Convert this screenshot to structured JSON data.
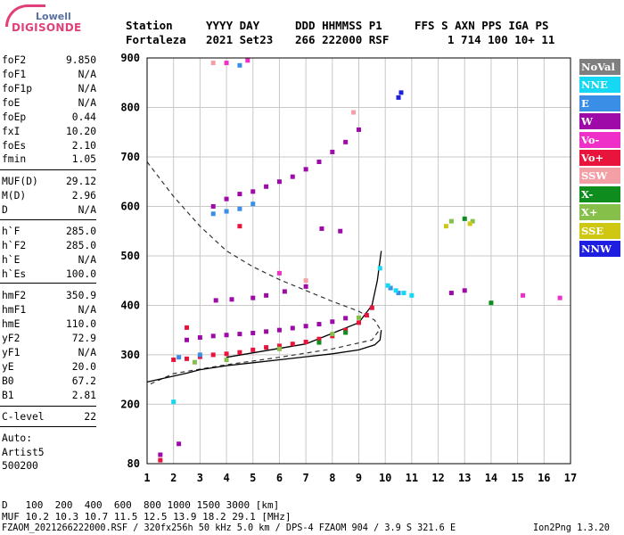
{
  "logo": {
    "top": "Lowell",
    "bottom": "DIGISONDE"
  },
  "header": {
    "line1": [
      "Station",
      "YYYY DAY",
      "DDD HHMMSS P1",
      "FFS S AXN PPS IGA PS"
    ],
    "line2": [
      "Fortaleza",
      "2021 Set23",
      "266 222000 RSF",
      "1 714 100 10+ 11"
    ]
  },
  "params": [
    {
      "name": "foF2",
      "value": "9.850"
    },
    {
      "name": "foF1",
      "value": "N/A"
    },
    {
      "name": "foF1p",
      "value": "N/A"
    },
    {
      "name": "foE",
      "value": "N/A"
    },
    {
      "name": "foEp",
      "value": "0.44"
    },
    {
      "name": "fxI",
      "value": "10.20"
    },
    {
      "name": "foEs",
      "value": "2.10"
    },
    {
      "name": "fmin",
      "value": "1.05"
    },
    {
      "name": "MUF(D)",
      "value": "29.12"
    },
    {
      "name": "M(D)",
      "value": "2.96"
    },
    {
      "name": "D",
      "value": "N/A"
    },
    {
      "name": "h`F",
      "value": "285.0"
    },
    {
      "name": "h`F2",
      "value": "285.0"
    },
    {
      "name": "h`E",
      "value": "N/A"
    },
    {
      "name": "h`Es",
      "value": "100.0"
    },
    {
      "name": "hmF2",
      "value": "350.9"
    },
    {
      "name": "hmF1",
      "value": "N/A"
    },
    {
      "name": "hmE",
      "value": "110.0"
    },
    {
      "name": "yF2",
      "value": "72.9"
    },
    {
      "name": "yF1",
      "value": "N/A"
    },
    {
      "name": "yE",
      "value": "20.0"
    },
    {
      "name": "B0",
      "value": "67.2"
    },
    {
      "name": "B1",
      "value": "2.81"
    },
    {
      "name": "C-level",
      "value": "22"
    }
  ],
  "autoscaling": {
    "line1": "Auto:",
    "line2": "Artist5",
    "line3": "500200"
  },
  "legend": [
    {
      "label": "NoVal",
      "color": "#7f7f7f"
    },
    {
      "label": "NNE",
      "color": "#16d8f2"
    },
    {
      "label": "E",
      "color": "#3a8ee6"
    },
    {
      "label": "W",
      "color": "#9e0aa8"
    },
    {
      "label": "Vo-",
      "color": "#ee30c8"
    },
    {
      "label": "Vo+",
      "color": "#e8143c"
    },
    {
      "label": "SSW",
      "color": "#f2a0a6"
    },
    {
      "label": "X-",
      "color": "#0f8c1e"
    },
    {
      "label": "X+",
      "color": "#86bf4a"
    },
    {
      "label": "SSE",
      "color": "#cfc812"
    },
    {
      "label": "NNW",
      "color": "#1e1ee0"
    }
  ],
  "footer": {
    "d_label": "D",
    "d_values": "100  200  400  600  800 1000 1500 3000 [km]",
    "muf_label": "MUF",
    "muf_values": "10.2 10.3 10.7 11.5 12.5 13.9 18.2 29.1 [MHz]",
    "file_line": "FZAOM_2021266222000.RSF / 320fx256h 50 kHz 5.0 km / DPS-4 FZAOM 904 / 3.9 S 321.6 E",
    "version": "Ion2Png 1.3.20"
  },
  "chart_data": {
    "type": "scatter",
    "xlabel": "",
    "ylabel": "",
    "xlim": [
      1,
      17
    ],
    "ylim": [
      80,
      900
    ],
    "x_ticks": [
      1,
      2,
      3,
      4,
      5,
      6,
      7,
      8,
      9,
      10,
      11,
      12,
      13,
      14,
      15,
      16,
      17
    ],
    "y_ticks": [
      80,
      200,
      300,
      400,
      500,
      600,
      700,
      800,
      900
    ],
    "grid": true,
    "series": [
      {
        "name": "W",
        "color": "#9e0aa8",
        "points": [
          [
            2.5,
            330
          ],
          [
            3.0,
            335
          ],
          [
            3.5,
            338
          ],
          [
            4.0,
            340
          ],
          [
            4.5,
            342
          ],
          [
            5.0,
            344
          ],
          [
            5.5,
            347
          ],
          [
            6.0,
            350
          ],
          [
            6.5,
            354
          ],
          [
            7.0,
            358
          ],
          [
            7.5,
            362
          ],
          [
            8.0,
            367
          ],
          [
            8.5,
            374
          ],
          [
            3.6,
            410
          ],
          [
            4.2,
            412
          ],
          [
            5.0,
            415
          ],
          [
            5.5,
            420
          ],
          [
            6.2,
            428
          ],
          [
            7.0,
            438
          ],
          [
            3.5,
            600
          ],
          [
            4.0,
            615
          ],
          [
            4.5,
            625
          ],
          [
            5.0,
            630
          ],
          [
            5.5,
            640
          ],
          [
            6.0,
            650
          ],
          [
            6.5,
            660
          ],
          [
            7.0,
            675
          ],
          [
            7.5,
            690
          ],
          [
            8.0,
            710
          ],
          [
            8.5,
            730
          ],
          [
            9.0,
            755
          ],
          [
            1.5,
            98
          ],
          [
            2.2,
            120
          ],
          [
            7.6,
            555
          ],
          [
            8.3,
            550
          ],
          [
            13.0,
            430
          ],
          [
            12.5,
            425
          ]
        ]
      },
      {
        "name": "Vo+",
        "color": "#e8143c",
        "points": [
          [
            1.5,
            87
          ],
          [
            2.0,
            290
          ],
          [
            2.5,
            292
          ],
          [
            3.0,
            296
          ],
          [
            3.5,
            300
          ],
          [
            4.0,
            302
          ],
          [
            4.5,
            305
          ],
          [
            5.0,
            310
          ],
          [
            5.5,
            315
          ],
          [
            6.0,
            318
          ],
          [
            6.5,
            322
          ],
          [
            7.0,
            326
          ],
          [
            7.5,
            332
          ],
          [
            8.0,
            338
          ],
          [
            8.5,
            350
          ],
          [
            9.0,
            365
          ],
          [
            9.3,
            380
          ],
          [
            9.5,
            395
          ],
          [
            2.5,
            355
          ],
          [
            4.5,
            560
          ]
        ]
      },
      {
        "name": "E",
        "color": "#3a8ee6",
        "points": [
          [
            2.2,
            295
          ],
          [
            3.0,
            300
          ],
          [
            3.5,
            585
          ],
          [
            4.0,
            590
          ],
          [
            4.5,
            595
          ],
          [
            5.0,
            605
          ],
          [
            10.2,
            435
          ],
          [
            10.5,
            425
          ],
          [
            4.5,
            885
          ]
        ]
      },
      {
        "name": "NNE",
        "color": "#16d8f2",
        "points": [
          [
            10.1,
            440
          ],
          [
            10.4,
            430
          ],
          [
            10.7,
            425
          ],
          [
            11.0,
            420
          ],
          [
            2.0,
            205
          ],
          [
            9.8,
            475
          ]
        ]
      },
      {
        "name": "X+",
        "color": "#86bf4a",
        "points": [
          [
            2.8,
            285
          ],
          [
            4.0,
            290
          ],
          [
            6.0,
            312
          ],
          [
            8.0,
            342
          ],
          [
            9.0,
            375
          ],
          [
            13.3,
            570
          ],
          [
            12.5,
            570
          ]
        ]
      },
      {
        "name": "X-",
        "color": "#0f8c1e",
        "points": [
          [
            7.5,
            325
          ],
          [
            8.5,
            345
          ],
          [
            13.0,
            575
          ],
          [
            14.0,
            405
          ]
        ]
      },
      {
        "name": "Vo-",
        "color": "#ee30c8",
        "points": [
          [
            4.0,
            890
          ],
          [
            4.8,
            895
          ],
          [
            6.0,
            465
          ],
          [
            15.2,
            420
          ],
          [
            16.6,
            415
          ]
        ]
      },
      {
        "name": "SSW",
        "color": "#f2a0a6",
        "points": [
          [
            8.8,
            790
          ],
          [
            3.5,
            890
          ],
          [
            7.0,
            450
          ]
        ]
      },
      {
        "name": "SSE",
        "color": "#cfc812",
        "points": [
          [
            13.2,
            565
          ],
          [
            12.3,
            560
          ]
        ]
      },
      {
        "name": "NNW",
        "color": "#1e1ee0",
        "points": [
          [
            10.5,
            820
          ],
          [
            10.6,
            830
          ]
        ]
      }
    ],
    "profile_curve": [
      [
        9.85,
        350
      ],
      [
        9.8,
        330
      ],
      [
        9.6,
        320
      ],
      [
        9.0,
        310
      ],
      [
        8.0,
        302
      ],
      [
        7.0,
        296
      ],
      [
        6.0,
        290
      ],
      [
        5.0,
        284
      ],
      [
        4.0,
        278
      ],
      [
        3.0,
        270
      ],
      [
        2.5,
        263
      ],
      [
        1.0,
        245
      ]
    ],
    "trace_curve": [
      [
        4.0,
        295
      ],
      [
        7.0,
        322
      ],
      [
        9.0,
        365
      ],
      [
        9.5,
        400
      ],
      [
        9.7,
        450
      ],
      [
        9.85,
        510
      ]
    ],
    "muf_curve": [
      [
        1.0,
        690
      ],
      [
        2.0,
        620
      ],
      [
        3.0,
        560
      ],
      [
        4.0,
        510
      ],
      [
        5.0,
        478
      ],
      [
        6.0,
        452
      ],
      [
        7.0,
        430
      ],
      [
        8.0,
        408
      ],
      [
        9.0,
        388
      ],
      [
        9.6,
        370
      ],
      [
        9.8,
        352
      ],
      [
        9.5,
        330
      ],
      [
        8.0,
        312
      ],
      [
        6.0,
        295
      ],
      [
        4.0,
        280
      ],
      [
        2.0,
        262
      ],
      [
        1.0,
        238
      ]
    ]
  }
}
